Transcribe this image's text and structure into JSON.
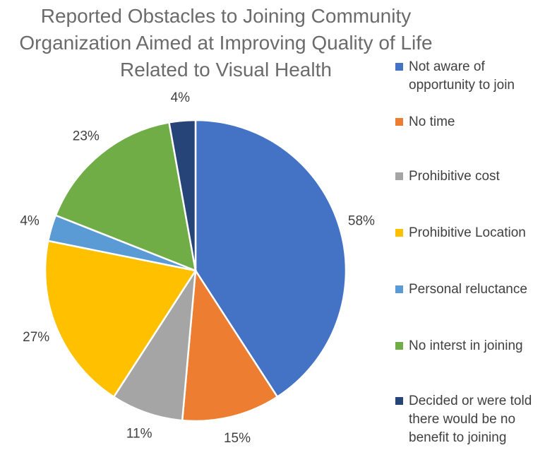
{
  "chart_data": {
    "type": "pie",
    "title_lines": [
      "Reported Obstacles to Joining Community",
      "Organization Aimed at Improving Quality of Life",
      "Related to Visual Health"
    ],
    "slices": [
      {
        "label": "Not aware of\nopportunity to join",
        "value": 58,
        "display": "58%",
        "color": "#4472C4"
      },
      {
        "label": "No time",
        "value": 15,
        "display": "15%",
        "color": "#ED7D31"
      },
      {
        "label": "Prohibitive cost",
        "value": 11,
        "display": "11%",
        "color": "#A5A5A5"
      },
      {
        "label": "Prohibitive Location",
        "value": 27,
        "display": "27%",
        "color": "#FFC000"
      },
      {
        "label": "Personal reluctance",
        "value": 4,
        "display": "4%",
        "color": "#5B9BD5"
      },
      {
        "label": "No interst in joining",
        "value": 23,
        "display": "23%",
        "color": "#70AD47"
      },
      {
        "label": "Decided or were told\nthere would be no\nbenefit to joining",
        "value": 4,
        "display": "4%",
        "color": "#264478"
      }
    ],
    "legend_position": "right",
    "start_angle_deg": 0,
    "direction": "clockwise"
  }
}
